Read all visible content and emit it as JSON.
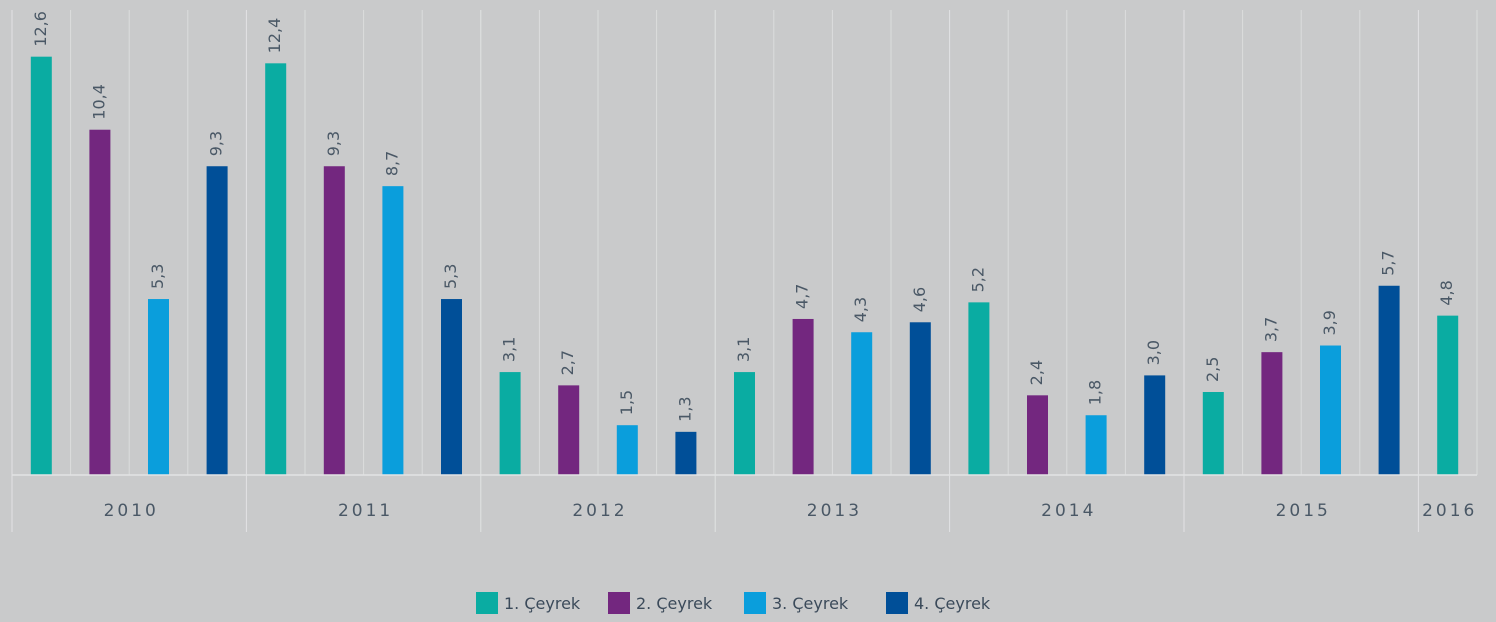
{
  "chart_data": {
    "type": "bar",
    "categories": [
      "2010",
      "2011",
      "2012",
      "2013",
      "2014",
      "2015",
      "2016"
    ],
    "series": [
      {
        "name": "1. Çeyrek",
        "color": "#0aaca2",
        "values": [
          12.6,
          12.4,
          3.1,
          3.1,
          5.2,
          2.5,
          4.8
        ],
        "value_labels": [
          "12,6",
          "12,4",
          "3,1",
          "3,1",
          "5,2",
          "2,5",
          "4,8"
        ]
      },
      {
        "name": "2. Çeyrek",
        "color": "#73277f",
        "values": [
          10.4,
          9.3,
          2.7,
          4.7,
          2.4,
          3.7,
          null
        ],
        "value_labels": [
          "10,4",
          "9,3",
          "2,7",
          "4,7",
          "2,4",
          "3,7",
          null
        ]
      },
      {
        "name": "3. Çeyrek",
        "color": "#0a9edc",
        "values": [
          5.3,
          8.7,
          1.5,
          4.3,
          1.8,
          3.9,
          null
        ],
        "value_labels": [
          "5,3",
          "8,7",
          "1,5",
          "4,3",
          "1,8",
          "3,9",
          null
        ]
      },
      {
        "name": "4. Çeyrek",
        "color": "#004f98",
        "values": [
          9.3,
          5.3,
          1.3,
          4.6,
          3.0,
          5.7,
          null
        ],
        "value_labels": [
          "9,3",
          "5,3",
          "1,3",
          "4,6",
          "3,0",
          "5,7",
          null
        ]
      }
    ],
    "legend": "bottom"
  }
}
